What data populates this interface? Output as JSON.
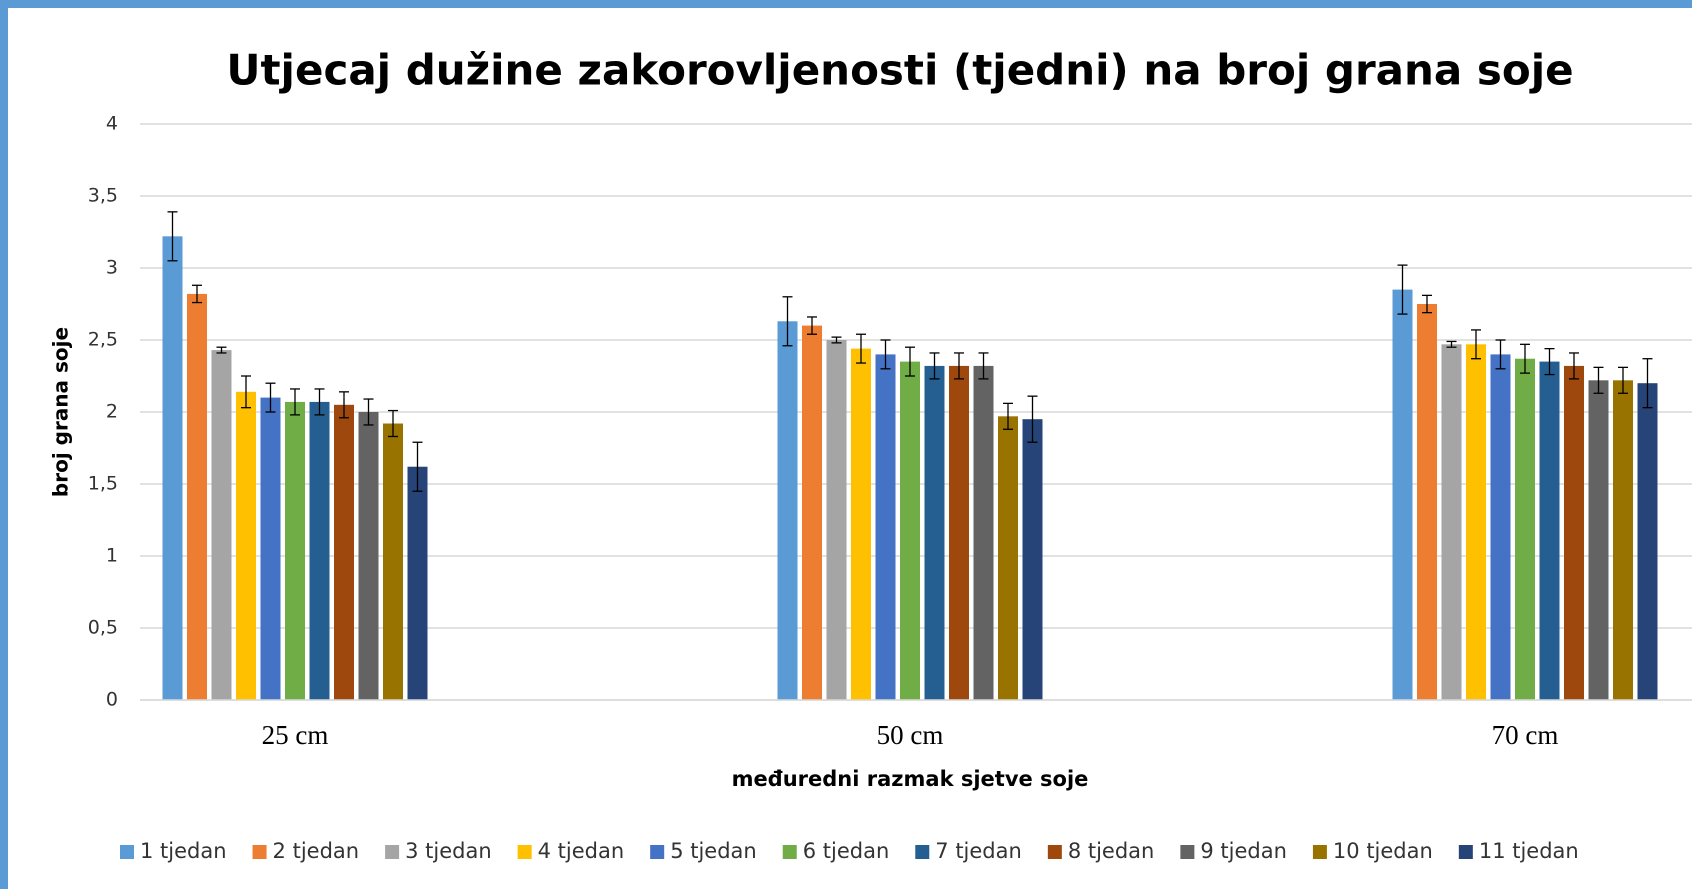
{
  "chart_data": {
    "type": "bar",
    "title": "Utjecaj dužine zakorovljenosti (tjedni) na broj grana soje",
    "x_label": "međuredni razmak sjetve soje",
    "y_label": "broj grana soje",
    "categories": [
      "25 cm",
      "50 cm",
      "70 cm"
    ],
    "ylim": [
      0,
      4
    ],
    "yticks": [
      0,
      {
        "value": 0.5,
        "label": "0,5"
      },
      1,
      {
        "value": 1.5,
        "label": "1,5"
      },
      2,
      {
        "value": 2.5,
        "label": "2,5"
      },
      3,
      {
        "value": 3.5,
        "label": "3,5"
      },
      4
    ],
    "grid": true,
    "legend": "bottom",
    "series": [
      {
        "name": "1 tjedan",
        "color": "#5b9bd5",
        "values": [
          3.22,
          2.63,
          2.85
        ],
        "errors": [
          0.17,
          0.17,
          0.17
        ]
      },
      {
        "name": "2 tjedan",
        "color": "#ed7d31",
        "values": [
          2.82,
          2.6,
          2.75
        ],
        "errors": [
          0.06,
          0.06,
          0.06
        ]
      },
      {
        "name": "3 tjedan",
        "color": "#a5a5a5",
        "values": [
          2.43,
          2.5,
          2.47
        ],
        "errors": [
          0.02,
          0.02,
          0.02
        ]
      },
      {
        "name": "4 tjedan",
        "color": "#ffc000",
        "values": [
          2.14,
          2.44,
          2.47
        ],
        "errors": [
          0.11,
          0.1,
          0.1
        ]
      },
      {
        "name": "5 tjedan",
        "color": "#4472c4",
        "values": [
          2.1,
          2.4,
          2.4
        ],
        "errors": [
          0.1,
          0.1,
          0.1
        ]
      },
      {
        "name": "6 tjedan",
        "color": "#70ad47",
        "values": [
          2.07,
          2.35,
          2.37
        ],
        "errors": [
          0.09,
          0.1,
          0.1
        ]
      },
      {
        "name": "7 tjedan",
        "color": "#255e91",
        "values": [
          2.07,
          2.32,
          2.35
        ],
        "errors": [
          0.09,
          0.09,
          0.09
        ]
      },
      {
        "name": "8 tjedan",
        "color": "#9e480e",
        "values": [
          2.05,
          2.32,
          2.32
        ],
        "errors": [
          0.09,
          0.09,
          0.09
        ]
      },
      {
        "name": "9 tjedan",
        "color": "#636363",
        "values": [
          2.0,
          2.32,
          2.22
        ],
        "errors": [
          0.09,
          0.09,
          0.09
        ]
      },
      {
        "name": "10 tjedan",
        "color": "#997300",
        "values": [
          1.92,
          1.97,
          2.22
        ],
        "errors": [
          0.09,
          0.09,
          0.09
        ]
      },
      {
        "name": "11 tjedan",
        "color": "#264478",
        "values": [
          1.62,
          1.95,
          2.2
        ],
        "errors": [
          0.17,
          0.16,
          0.17
        ]
      }
    ]
  }
}
